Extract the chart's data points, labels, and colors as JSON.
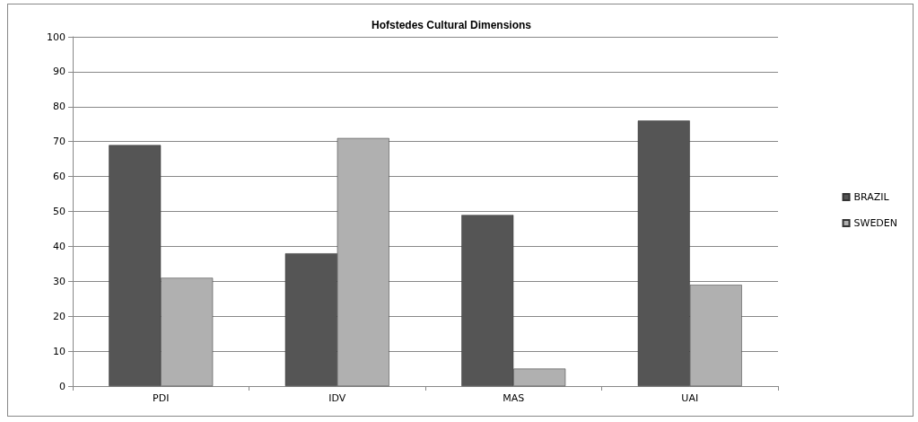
{
  "chart_data": {
    "type": "bar",
    "title": "Hofstedes Cultural Dimensions",
    "categories": [
      "PDI",
      "IDV",
      "MAS",
      "UAI"
    ],
    "series": [
      {
        "name": "BRAZIL",
        "color": "#555555",
        "values": [
          69,
          38,
          49,
          76
        ]
      },
      {
        "name": "SWEDEN",
        "color": "#b0b0b0",
        "values": [
          31,
          71,
          5,
          29
        ]
      }
    ],
    "ylim": [
      0,
      100
    ],
    "yticks": [
      0,
      10,
      20,
      30,
      40,
      50,
      60,
      70,
      80,
      90,
      100
    ],
    "grid": "y",
    "legend": "right"
  }
}
